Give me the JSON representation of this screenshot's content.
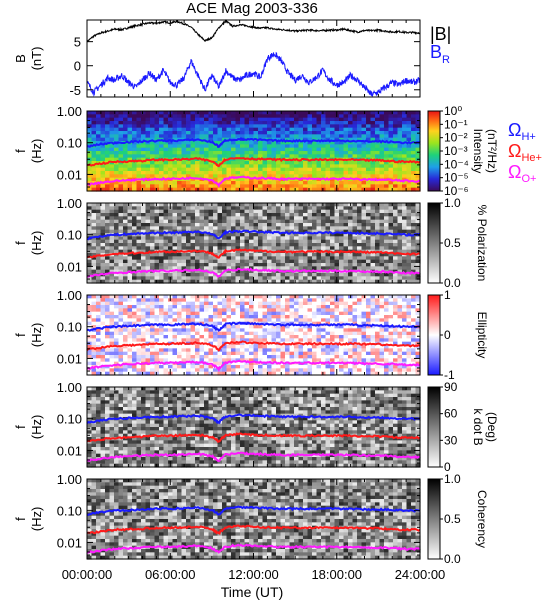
{
  "chart_data": {
    "type": "spectrogram",
    "title": "ACE Mag 2003-336",
    "xlabel": "Time (UT)",
    "x_ticks": [
      "00:00:00",
      "06:00:00",
      "12:00:00",
      "18:00:00",
      "24:00:00"
    ],
    "x_range_hours": [
      0,
      24
    ],
    "panels": [
      {
        "id": "bfield",
        "type": "line",
        "ylabel_main": "B",
        "ylabel_unit": "(nT)",
        "ylim": [
          -6.5,
          9.5
        ],
        "y_ticks": [
          "5",
          "0",
          "-5"
        ],
        "y_tick_values": [
          5,
          0,
          -5
        ],
        "series": [
          {
            "name": "|B|",
            "color": "#000000",
            "x": [
              0,
              0.5,
              1,
              1.5,
              2,
              2.5,
              3,
              3.5,
              4,
              4.5,
              5,
              5.5,
              6,
              6.5,
              7,
              7.5,
              8,
              8.5,
              9,
              9.5,
              10,
              10.5,
              11,
              11.5,
              12,
              12.5,
              13,
              13.5,
              14,
              14.5,
              15,
              15.5,
              16,
              16.5,
              17,
              17.5,
              18,
              18.5,
              19,
              19.5,
              20,
              20.5,
              21,
              21.5,
              22,
              22.5,
              23,
              23.5,
              24
            ],
            "y": [
              5.0,
              6.2,
              6.8,
              7.2,
              7.6,
              7.5,
              7.9,
              8.3,
              8.6,
              8.9,
              8.8,
              9.1,
              8.9,
              9.2,
              8.7,
              8.0,
              6.5,
              5.2,
              5.8,
              7.9,
              9.3,
              8.2,
              8.5,
              8.3,
              8.0,
              7.8,
              7.9,
              7.6,
              7.5,
              7.4,
              7.2,
              7.3,
              7.4,
              7.3,
              7.3,
              7.4,
              7.4,
              7.6,
              7.3,
              7.0,
              7.3,
              7.3,
              7.4,
              7.2,
              7.0,
              7.1,
              6.9,
              6.9,
              6.8
            ]
          },
          {
            "name": "B",
            "sub": "R",
            "color": "#1a1aff",
            "x": [
              0,
              0.5,
              1,
              1.5,
              2,
              2.5,
              3,
              3.5,
              4,
              4.5,
              5,
              5.5,
              6,
              6.5,
              7,
              7.5,
              8,
              8.5,
              9,
              9.5,
              10,
              10.5,
              11,
              11.5,
              12,
              12.5,
              13,
              13.5,
              14,
              14.5,
              15,
              15.5,
              16,
              16.5,
              17,
              17.5,
              18,
              18.5,
              19,
              19.5,
              20,
              20.5,
              21,
              21.5,
              22,
              22.5,
              23,
              23.5,
              24
            ],
            "y": [
              -3.5,
              -5.5,
              -4.0,
              -2.5,
              -3.0,
              -2.0,
              -3.5,
              -4.5,
              -3.0,
              -1.5,
              -3.0,
              -1.0,
              -3.5,
              -4.0,
              -2.5,
              1.0,
              -2.0,
              -5.0,
              -2.0,
              -4.5,
              -1.0,
              -2.5,
              -3.0,
              -2.0,
              -1.5,
              -2.5,
              1.5,
              2.5,
              1.0,
              -1.5,
              -3.0,
              -2.0,
              -3.5,
              -2.5,
              -1.0,
              -3.0,
              -4.0,
              -3.5,
              -2.0,
              -3.0,
              -4.5,
              -6.0,
              -5.5,
              -4.5,
              -3.5,
              -4.0,
              -3.0,
              -3.5,
              -3.0
            ]
          }
        ]
      },
      {
        "id": "intensity",
        "type": "heatmap",
        "ylabel_main": "f",
        "ylabel_unit": "(Hz)",
        "y_scale": "log",
        "ylim": [
          0.003,
          1.0
        ],
        "y_ticks": [
          "1.00",
          "0.10",
          "0.01"
        ],
        "colorbar": {
          "label": "Intensity",
          "label2": "(nT²/Hz)",
          "scheme": "rainbow",
          "ticks": [
            "10⁰",
            "10⁻¹",
            "10⁻²",
            "10⁻³",
            "10⁻⁴",
            "10⁻⁵",
            "10⁻⁶"
          ]
        }
      },
      {
        "id": "polarization",
        "type": "heatmap",
        "ylabel_main": "f",
        "ylabel_unit": "(Hz)",
        "y_scale": "log",
        "ylim": [
          0.003,
          1.0
        ],
        "y_ticks": [
          "1.00",
          "0.10",
          "0.01"
        ],
        "colorbar": {
          "label": "% Polarization",
          "scheme": "grayscale",
          "ticks": [
            "1.0",
            "0.5",
            "0.0"
          ]
        }
      },
      {
        "id": "ellipticity",
        "type": "heatmap",
        "ylabel_main": "f",
        "ylabel_unit": "(Hz)",
        "y_scale": "log",
        "ylim": [
          0.003,
          1.0
        ],
        "y_ticks": [
          "1.00",
          "0.10",
          "0.01"
        ],
        "colorbar": {
          "label": "Ellipticity",
          "scheme": "diverging",
          "ticks": [
            "1",
            "0",
            "-1"
          ]
        }
      },
      {
        "id": "kdotb",
        "type": "heatmap",
        "ylabel_main": "f",
        "ylabel_unit": "(Hz)",
        "y_scale": "log",
        "ylim": [
          0.003,
          1.0
        ],
        "y_ticks": [
          "1.00",
          "0.10",
          "0.01"
        ],
        "colorbar": {
          "label": "k dot B",
          "label2": "(Deg)",
          "scheme": "grayscale",
          "ticks": [
            "90",
            "60",
            "30",
            "0"
          ]
        }
      },
      {
        "id": "coherency",
        "type": "heatmap",
        "ylabel_main": "f",
        "ylabel_unit": "(Hz)",
        "y_scale": "log",
        "ylim": [
          0.003,
          1.0
        ],
        "y_ticks": [
          "1.00",
          "0.10",
          "0.01"
        ],
        "colorbar": {
          "label": "Coherency",
          "scheme": "grayscale",
          "ticks": [
            "1.0",
            "0.5",
            "0.0"
          ]
        }
      }
    ],
    "legend_bfield": [
      "|B|",
      "B_R"
    ],
    "gyro_legend": [
      {
        "symbol": "Ω",
        "sub": "H+",
        "color": "#1a1aff"
      },
      {
        "symbol": "Ω",
        "sub": "He+",
        "color": "#ff1a1a"
      },
      {
        "symbol": "Ω",
        "sub": "O+",
        "color": "#ff1aff"
      }
    ],
    "gyrofrequency_lines": [
      {
        "name": "H+",
        "color": "#1a1aff",
        "x": [
          0,
          1,
          2,
          3,
          4,
          5,
          6,
          7,
          8,
          9,
          9.5,
          10,
          11,
          12,
          13,
          14,
          15,
          16,
          17,
          18,
          19,
          20,
          21,
          22,
          23,
          24
        ],
        "y": [
          0.075,
          0.09,
          0.1,
          0.105,
          0.11,
          0.115,
          0.115,
          0.12,
          0.125,
          0.105,
          0.075,
          0.12,
          0.13,
          0.125,
          0.12,
          0.115,
          0.115,
          0.115,
          0.115,
          0.115,
          0.115,
          0.11,
          0.11,
          0.105,
          0.1,
          0.1
        ]
      },
      {
        "name": "He+",
        "color": "#ff1a1a",
        "x": [
          0,
          1,
          2,
          3,
          4,
          5,
          6,
          7,
          8,
          9,
          9.5,
          10,
          11,
          12,
          13,
          14,
          15,
          16,
          17,
          18,
          19,
          20,
          21,
          22,
          23,
          24
        ],
        "y": [
          0.019,
          0.022,
          0.025,
          0.026,
          0.027,
          0.029,
          0.029,
          0.03,
          0.031,
          0.026,
          0.019,
          0.03,
          0.033,
          0.031,
          0.03,
          0.029,
          0.029,
          0.029,
          0.029,
          0.029,
          0.029,
          0.028,
          0.028,
          0.026,
          0.025,
          0.025
        ]
      },
      {
        "name": "O+",
        "color": "#ff1aff",
        "x": [
          0,
          1,
          2,
          3,
          4,
          5,
          6,
          7,
          8,
          9,
          9.5,
          10,
          11,
          12,
          13,
          14,
          15,
          16,
          17,
          18,
          19,
          20,
          21,
          22,
          23,
          24
        ],
        "y": [
          0.0047,
          0.0056,
          0.0062,
          0.0066,
          0.0069,
          0.0072,
          0.0072,
          0.0075,
          0.0078,
          0.0066,
          0.0047,
          0.0075,
          0.0081,
          0.0078,
          0.0075,
          0.0072,
          0.0072,
          0.0072,
          0.0072,
          0.0072,
          0.0072,
          0.0069,
          0.0069,
          0.0066,
          0.0062,
          0.0062
        ]
      }
    ]
  }
}
